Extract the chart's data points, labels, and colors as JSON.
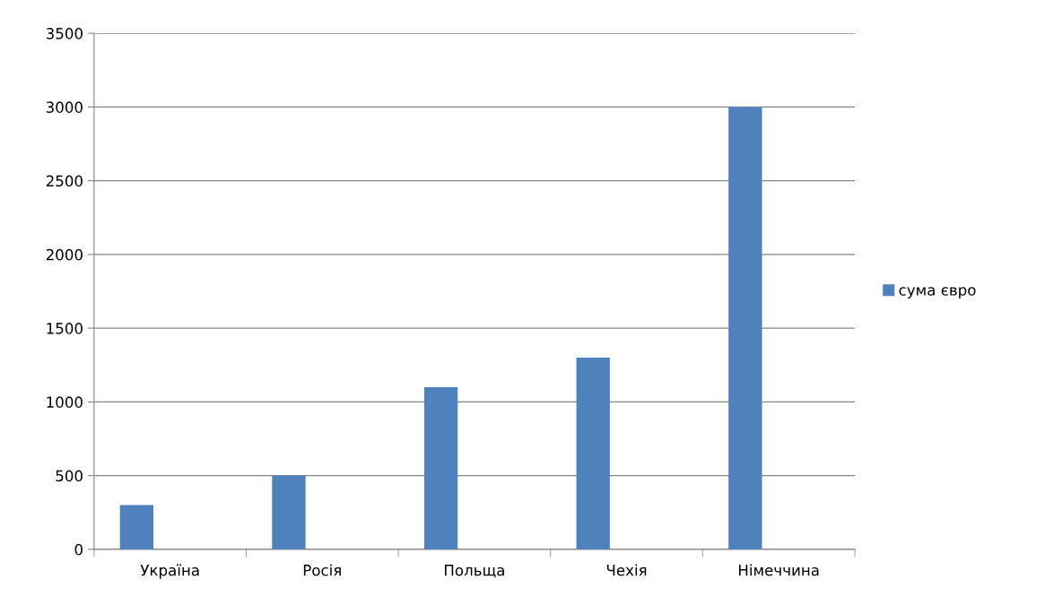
{
  "chart_data": {
    "type": "bar",
    "categories": [
      "Україна",
      "Росія",
      "Польща",
      "Чехія",
      "Німеччина"
    ],
    "series": [
      {
        "name": "сума євро",
        "color": "#4f81bd",
        "values": [
          300,
          500,
          1100,
          1300,
          3000
        ]
      }
    ],
    "ylim": [
      0,
      3500
    ],
    "yticks": [
      0,
      500,
      1000,
      1500,
      2000,
      2500,
      3000,
      3500
    ],
    "grid": "y",
    "legend": "right"
  }
}
